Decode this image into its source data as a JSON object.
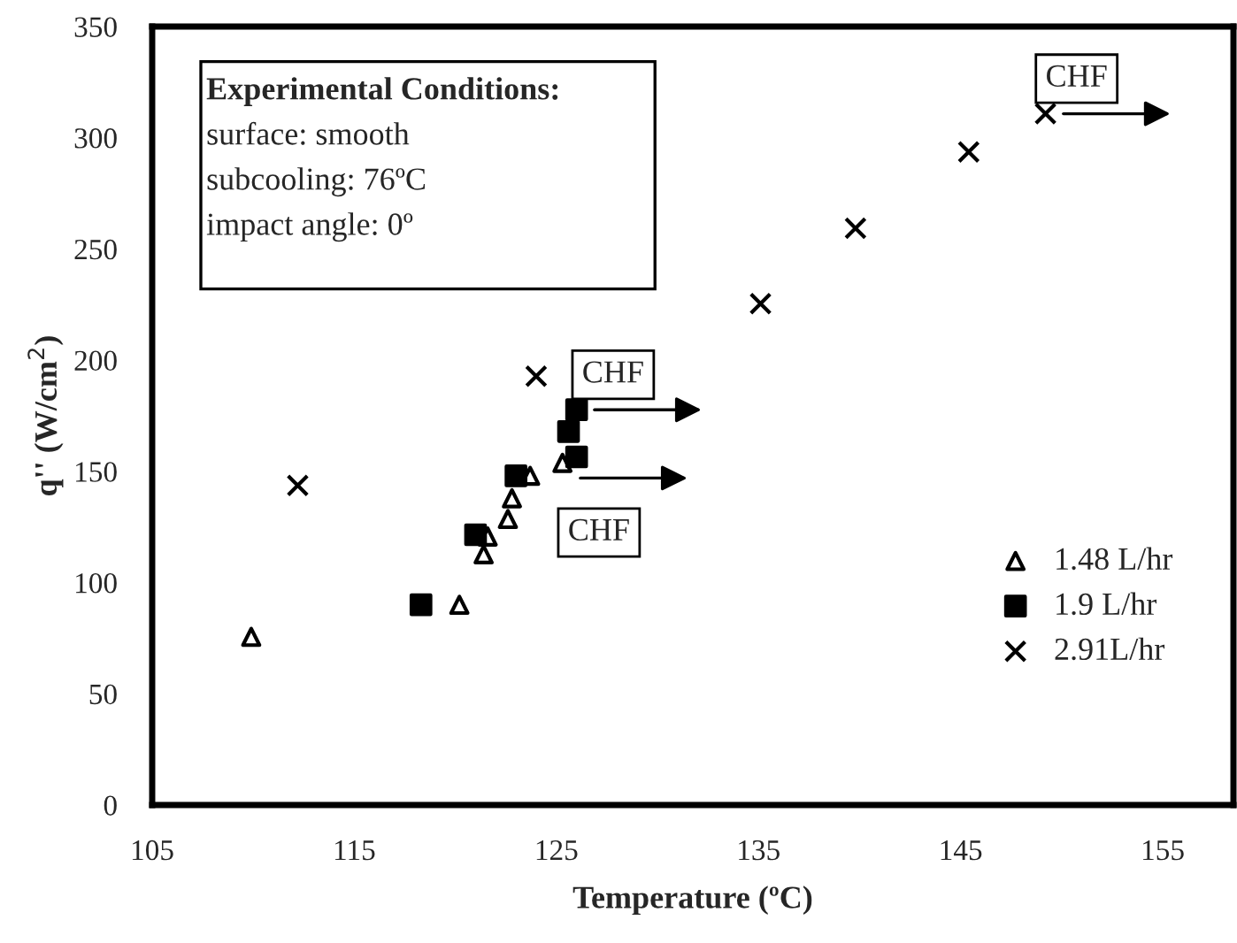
{
  "chart_data": {
    "type": "scatter",
    "xlabel": "Temperature (ºC)",
    "ylabel": "q'' (W/cm$^{2}$)",
    "xlim": [
      105,
      158.5
    ],
    "xticks": [
      105,
      115,
      125,
      135,
      145,
      155
    ],
    "ylim": [
      0,
      350
    ],
    "yticks": [
      0,
      50,
      100,
      150,
      200,
      250,
      300,
      350
    ],
    "grid": false,
    "legend": "bottom right",
    "series": [
      {
        "name": "1.48 L/hr",
        "color": "#000000",
        "marker": "triangle",
        "x": [
          109.9,
          120.2,
          121.4,
          121.6,
          122.6,
          122.8,
          123.7,
          125.3
        ],
        "values": [
          75.6,
          90,
          112.7,
          120.7,
          128.6,
          137.9,
          148,
          153.8
        ]
      },
      {
        "name": "1.9 L/hr",
        "color": "#000000",
        "marker": "square",
        "x": [
          118.3,
          121.0,
          123.0,
          126.0,
          125.6,
          126.0
        ],
        "values": [
          90,
          121.5,
          148,
          156.5,
          167.9,
          177.7
        ]
      },
      {
        "name": "2.91L/hr",
        "color": "#000000",
        "marker": "cross",
        "x": [
          112.2,
          124.0,
          135.1,
          139.8,
          145.4,
          149.2
        ],
        "values": [
          143.7,
          192.8,
          225.4,
          259.3,
          293.6,
          310.8
        ]
      }
    ],
    "annotations": [
      "Experimental Conditions:",
      "surface: smooth",
      "subcooling: 76ºC",
      "impact angle: 0º",
      {
        "text": "CHF",
        "x": 126.0,
        "y": 177.7
      },
      {
        "text": "CHF",
        "x": 125.3,
        "y": 147
      },
      {
        "text": "CHF",
        "x": 149.2,
        "y": 310.8
      }
    ]
  }
}
